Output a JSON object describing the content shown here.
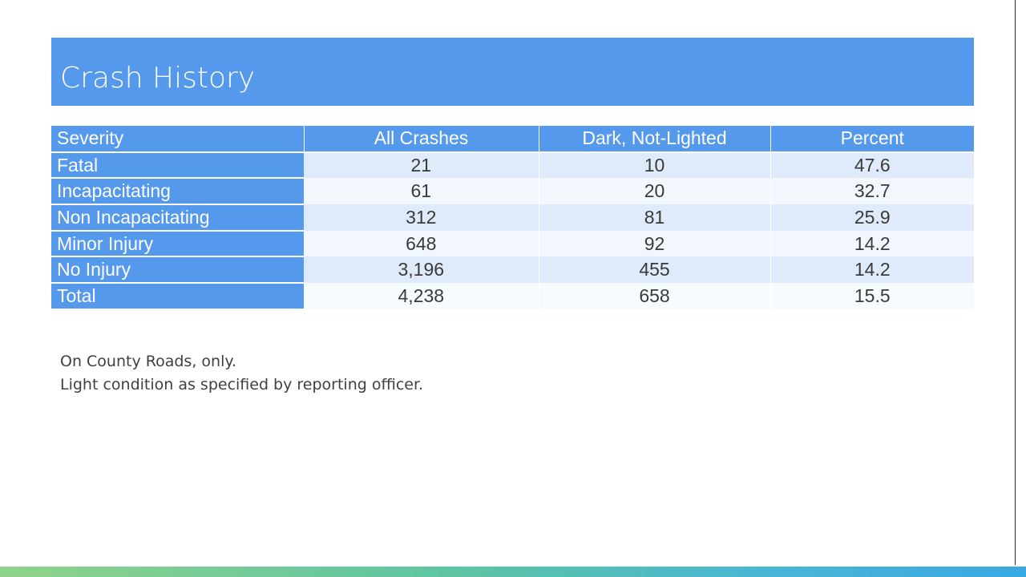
{
  "title": "Crash History",
  "table": {
    "headers": [
      "Severity",
      "All Crashes",
      "Dark, Not-Lighted",
      "Percent"
    ],
    "rows": [
      {
        "severity": "Fatal",
        "all_crashes": "21",
        "dark_not_lighted": "10",
        "percent": "47.6"
      },
      {
        "severity": "Incapacitating",
        "all_crashes": "61",
        "dark_not_lighted": "20",
        "percent": "32.7"
      },
      {
        "severity": "Non Incapacitating",
        "all_crashes": "312",
        "dark_not_lighted": "81",
        "percent": "25.9"
      },
      {
        "severity": "Minor Injury",
        "all_crashes": "648",
        "dark_not_lighted": "92",
        "percent": "14.2"
      },
      {
        "severity": "No Injury",
        "all_crashes": "3,196",
        "dark_not_lighted": "455",
        "percent": "14.2"
      },
      {
        "severity": "Total",
        "all_crashes": "4,238",
        "dark_not_lighted": "658",
        "percent": "15.5"
      }
    ]
  },
  "notes": [
    "On County Roads, only.",
    "Light condition as specified by reporting officer."
  ],
  "colors": {
    "header_blue": "#5599ec",
    "row_band_a": "#dfeafb",
    "row_band_b": "#f1f7fd",
    "text_dark": "#3a3a3a"
  }
}
